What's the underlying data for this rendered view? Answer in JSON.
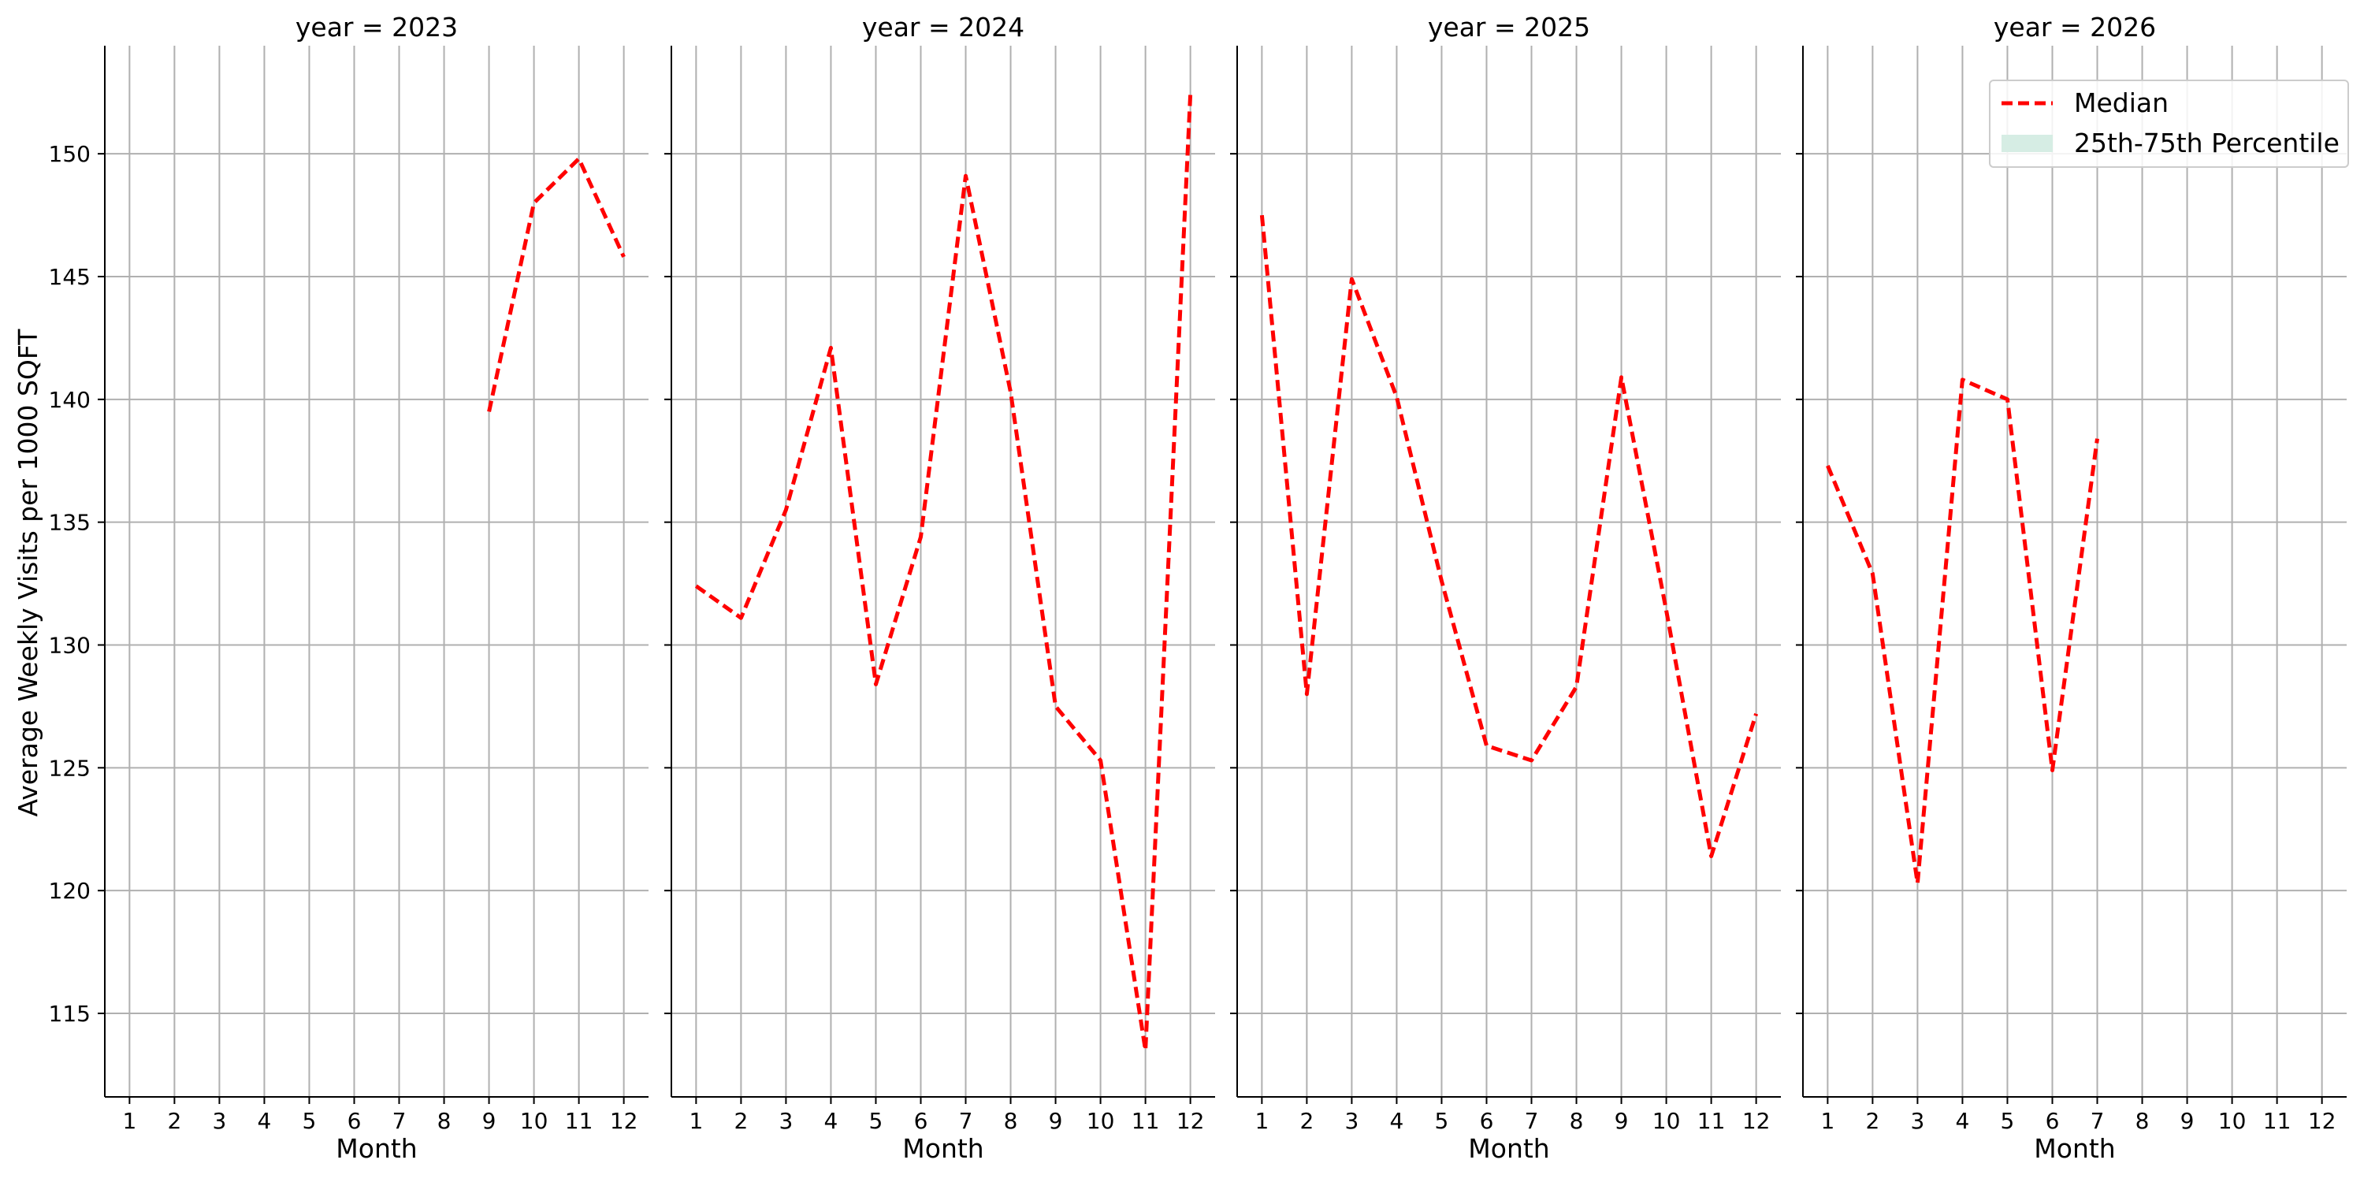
{
  "figure": {
    "ylabel": "Average Weekly Visits per 1000 SQFT",
    "legend": {
      "position": "top-right",
      "median_label": "Median",
      "band_label": "25th-75th Percentile"
    }
  },
  "chart_data": {
    "type": "line",
    "facet_by": "year",
    "grid": true,
    "ylabel": "Average Weekly Visits per 1000 SQFT",
    "ylim": [
      111.6,
      154.4
    ],
    "yticks": [
      115,
      120,
      125,
      130,
      135,
      140,
      145,
      150
    ],
    "xticks": [
      1,
      2,
      3,
      4,
      5,
      6,
      7,
      8,
      9,
      10,
      11,
      12
    ],
    "xlim": [
      0.45,
      12.55
    ],
    "colors": {
      "median": "#ff0000",
      "band": "#d6ede4",
      "grid": "#b0b0b0",
      "axis": "#000000"
    },
    "series_legend": [
      "Median",
      "25th-75th Percentile"
    ],
    "panels": [
      {
        "title": "year = 2023",
        "xlabel": "Month",
        "x": [
          9,
          10,
          11,
          12
        ],
        "median": [
          139.5,
          148.0,
          149.8,
          145.8
        ]
      },
      {
        "title": "year = 2024",
        "xlabel": "Month",
        "x": [
          1,
          2,
          3,
          4,
          5,
          6,
          7,
          8,
          9,
          10,
          11,
          12
        ],
        "median": [
          132.4,
          131.1,
          135.5,
          142.1,
          128.4,
          134.4,
          149.1,
          140.3,
          127.5,
          125.3,
          113.5,
          152.4
        ]
      },
      {
        "title": "year = 2025",
        "xlabel": "Month",
        "x": [
          1,
          2,
          3,
          4,
          5,
          6,
          7,
          8,
          9,
          10,
          11,
          12
        ],
        "median": [
          147.5,
          128.0,
          144.9,
          140.1,
          132.6,
          125.9,
          125.3,
          128.3,
          140.9,
          131.4,
          121.4,
          127.2
        ]
      },
      {
        "title": "year = 2026",
        "xlabel": "Month",
        "x": [
          1,
          2,
          3,
          4,
          5,
          6,
          7
        ],
        "median": [
          137.3,
          132.9,
          120.3,
          140.8,
          140.0,
          124.9,
          138.4
        ]
      }
    ]
  }
}
